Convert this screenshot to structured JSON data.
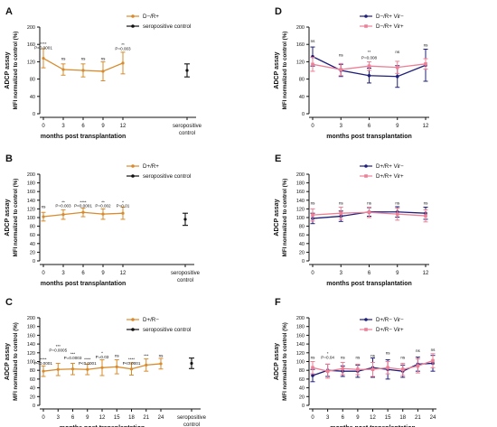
{
  "chart_data": [
    {
      "panel": "A",
      "type": "line",
      "ylabel_top": "ADCP assay",
      "ylabel": "MFI normalized to control (%)",
      "xlabel": "months post transplantation",
      "ylim": [
        0,
        200
      ],
      "yticks": [
        "0",
        "40",
        "80",
        "120",
        "160",
        "200"
      ],
      "categories": [
        "0",
        "3",
        "6",
        "9",
        "12"
      ],
      "control_label": "seropositive\ncontrol",
      "control": {
        "value": 100,
        "err": 15
      },
      "legend": {
        "position": "top-right",
        "entries": [
          "D−/R+",
          "seropositive control"
        ]
      },
      "series": [
        {
          "name": "D−/R+",
          "color": "#d88b2d",
          "values": [
            128,
            102,
            100,
            98,
            117
          ],
          "errors": [
            22,
            13,
            15,
            22,
            25
          ]
        }
      ],
      "annotations": [
        {
          "text": "****",
          "x": 0,
          "y": 158
        },
        {
          "text": "P<0.0001",
          "x": 0,
          "y": 149
        },
        {
          "text": "ns",
          "x": 1,
          "y": 124
        },
        {
          "text": "ns",
          "x": 2,
          "y": 124
        },
        {
          "text": "ns",
          "x": 3,
          "y": 124
        },
        {
          "text": "**",
          "x": 4,
          "y": 156
        },
        {
          "text": "P=0.003",
          "x": 4,
          "y": 147
        }
      ]
    },
    {
      "panel": "B",
      "type": "line",
      "ylabel_top": "ADCP assay",
      "ylabel": "MFI normalized to control (%)",
      "xlabel": "months post transplantation",
      "ylim": [
        0,
        200
      ],
      "yticks": [
        "0",
        "20",
        "40",
        "60",
        "80",
        "100",
        "120",
        "140",
        "160",
        "180",
        "200"
      ],
      "categories": [
        "0",
        "3",
        "6",
        "9",
        "12"
      ],
      "control_label": "seropositive\ncontrol",
      "control": {
        "value": 96,
        "err": 14
      },
      "legend": {
        "position": "top-right",
        "entries": [
          "D+/R+",
          "seropositive control"
        ]
      },
      "series": [
        {
          "name": "D+/R+",
          "color": "#d88b2d",
          "values": [
            102,
            107,
            112,
            108,
            110
          ],
          "errors": [
            10,
            11,
            10,
            12,
            14
          ]
        }
      ],
      "annotations": [
        {
          "text": "ns",
          "x": 0,
          "y": 122
        },
        {
          "text": "**",
          "x": 1,
          "y": 132
        },
        {
          "text": "P=0.003",
          "x": 1,
          "y": 124
        },
        {
          "text": "****",
          "x": 2,
          "y": 132
        },
        {
          "text": "P<0.0001",
          "x": 2,
          "y": 124
        },
        {
          "text": "**",
          "x": 3,
          "y": 132
        },
        {
          "text": "P=0.002",
          "x": 3,
          "y": 124
        },
        {
          "text": "*",
          "x": 4,
          "y": 132
        },
        {
          "text": "P=0.01",
          "x": 4,
          "y": 124
        }
      ]
    },
    {
      "panel": "C",
      "type": "line",
      "ylabel_top": "ADCP assay",
      "ylabel": "MFI normalized to control (%)",
      "xlabel": "months post transplantation",
      "ylim": [
        0,
        200
      ],
      "yticks": [
        "0",
        "20",
        "40",
        "60",
        "80",
        "100",
        "120",
        "140",
        "160",
        "180",
        "200"
      ],
      "categories": [
        "0",
        "3",
        "6",
        "9",
        "12",
        "15",
        "18",
        "21",
        "24"
      ],
      "control_label": "seropositive\ncontrol",
      "control": {
        "value": 96,
        "err": 12
      },
      "legend": {
        "position": "top-right",
        "entries": [
          "D+/R−",
          "seropositive control"
        ]
      },
      "series": [
        {
          "name": "D+/R−",
          "color": "#d88b2d",
          "values": [
            78,
            82,
            83,
            82,
            86,
            88,
            83,
            92,
            95
          ],
          "errors": [
            12,
            14,
            13,
            12,
            18,
            16,
            14,
            14,
            12
          ]
        }
      ],
      "annotations": [
        {
          "text": "****",
          "x": 0,
          "y": 102
        },
        {
          "text": "P<0.0001",
          "x": 0,
          "y": 93
        },
        {
          "text": "***",
          "x": 1,
          "y": 132
        },
        {
          "text": "P=0.0005",
          "x": 1,
          "y": 123
        },
        {
          "text": "***",
          "x": 2,
          "y": 114
        },
        {
          "text": "P=0.0003",
          "x": 2,
          "y": 105
        },
        {
          "text": "****",
          "x": 3,
          "y": 102
        },
        {
          "text": "P<0.0001",
          "x": 3,
          "y": 93
        },
        {
          "text": "*",
          "x": 4,
          "y": 116
        },
        {
          "text": "P=0.03",
          "x": 4,
          "y": 107
        },
        {
          "text": "ns",
          "x": 5,
          "y": 110
        },
        {
          "text": "****",
          "x": 6,
          "y": 102
        },
        {
          "text": "P<0.0001",
          "x": 6,
          "y": 93
        },
        {
          "text": "***",
          "x": 7,
          "y": 110
        },
        {
          "text": "ns",
          "x": 8,
          "y": 110
        }
      ]
    },
    {
      "panel": "D",
      "type": "line",
      "ylabel_top": "ADCP assay",
      "ylabel": "MFI normalized to control (%)",
      "xlabel": "months post transplantation",
      "ylim": [
        0,
        200
      ],
      "yticks": [
        "0",
        "40",
        "80",
        "120",
        "160",
        "200"
      ],
      "categories": [
        "0",
        "3",
        "6",
        "9",
        "12"
      ],
      "legend": {
        "position": "top-right",
        "entries": [
          "D−/R+ Vir−",
          "D−/R+ Vir+"
        ]
      },
      "series": [
        {
          "name": "D−/R+ Vir−",
          "color": "#1f1f7a",
          "values": [
            132,
            100,
            88,
            86,
            112
          ],
          "errors": [
            22,
            14,
            17,
            25,
            37
          ]
        },
        {
          "name": "D−/R+ Vir+",
          "color": "#ee7f95",
          "values": [
            114,
            102,
            110,
            107,
            115
          ],
          "errors": [
            16,
            14,
            10,
            14,
            12
          ]
        }
      ],
      "annotations": [
        {
          "text": "ns",
          "x": 0,
          "y": 165
        },
        {
          "text": "ns",
          "x": 1,
          "y": 132
        },
        {
          "text": "**",
          "x": 2,
          "y": 140
        },
        {
          "text": "P=0.008",
          "x": 2,
          "y": 126
        },
        {
          "text": "ns",
          "x": 3,
          "y": 140
        },
        {
          "text": "ns",
          "x": 4,
          "y": 155
        }
      ]
    },
    {
      "panel": "E",
      "type": "line",
      "ylabel_top": "ADCP assay",
      "ylabel": "MFI normalized to control (%)",
      "xlabel": "months post transplantation",
      "ylim": [
        0,
        200
      ],
      "yticks": [
        "0",
        "20",
        "40",
        "60",
        "80",
        "100",
        "120",
        "140",
        "160",
        "180",
        "200"
      ],
      "categories": [
        "0",
        "3",
        "6",
        "9",
        "12"
      ],
      "legend": {
        "position": "top-right",
        "entries": [
          "D+/R+ Vir−",
          "D+/R+ Vir+"
        ]
      },
      "series": [
        {
          "name": "D+/R+ Vir−",
          "color": "#1f1f7a",
          "values": [
            98,
            103,
            113,
            113,
            110
          ],
          "errors": [
            12,
            12,
            10,
            12,
            14
          ]
        },
        {
          "name": "D+/R+ Vir+",
          "color": "#ee7f95",
          "values": [
            106,
            110,
            112,
            108,
            104
          ],
          "errors": [
            14,
            14,
            12,
            14,
            14
          ]
        }
      ],
      "annotations": [
        {
          "text": "ns",
          "x": 0,
          "y": 130
        },
        {
          "text": "ns",
          "x": 1,
          "y": 130
        },
        {
          "text": "ns",
          "x": 2,
          "y": 130
        },
        {
          "text": "ns",
          "x": 3,
          "y": 130
        },
        {
          "text": "ns",
          "x": 4,
          "y": 130
        }
      ]
    },
    {
      "panel": "F",
      "type": "line",
      "ylabel_top": "ADCP assay",
      "ylabel": "MFI normalized to control (%)",
      "xlabel": "months post transplantation",
      "ylim": [
        0,
        200
      ],
      "yticks": [
        "0",
        "20",
        "40",
        "60",
        "80",
        "100",
        "120",
        "140",
        "160",
        "180",
        "200"
      ],
      "categories": [
        "0",
        "3",
        "6",
        "9",
        "12",
        "15",
        "18",
        "21",
        "24"
      ],
      "legend": {
        "position": "top-right",
        "entries": [
          "D+/R− Vir−",
          "D+/R− Vir+"
        ]
      },
      "series": [
        {
          "name": "D+/R− Vir−",
          "color": "#1f1f7a",
          "values": [
            68,
            80,
            78,
            78,
            86,
            82,
            78,
            94,
            96
          ],
          "errors": [
            14,
            14,
            12,
            14,
            22,
            22,
            14,
            16,
            18
          ]
        },
        {
          "name": "D+/R− Vir+",
          "color": "#ee7f95",
          "values": [
            86,
            78,
            84,
            82,
            82,
            86,
            82,
            90,
            102
          ],
          "errors": [
            14,
            16,
            14,
            12,
            16,
            14,
            14,
            16,
            16
          ]
        }
      ],
      "annotations": [
        {
          "text": "ns",
          "x": 0,
          "y": 106
        },
        {
          "text": "*",
          "x": 1,
          "y": 115
        },
        {
          "text": "P=0.04",
          "x": 1,
          "y": 106
        },
        {
          "text": "ns",
          "x": 2,
          "y": 106
        },
        {
          "text": "ns",
          "x": 3,
          "y": 106
        },
        {
          "text": "ns",
          "x": 4,
          "y": 110
        },
        {
          "text": "ns",
          "x": 5,
          "y": 116
        },
        {
          "text": "ns",
          "x": 6,
          "y": 106
        },
        {
          "text": "ns",
          "x": 7,
          "y": 122
        },
        {
          "text": "ns",
          "x": 8,
          "y": 124
        }
      ]
    }
  ]
}
